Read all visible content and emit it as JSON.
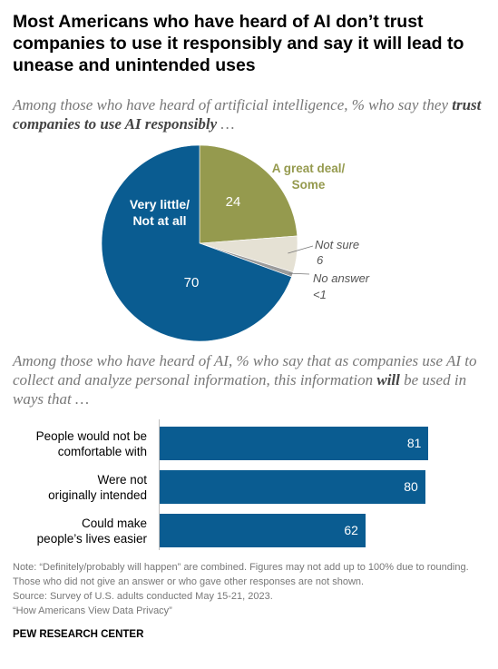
{
  "title": "Most Americans who have heard of AI don’t trust companies to use it responsibly and say it will lead to unease and unintended uses",
  "subtitle1": {
    "pre": "Among those who have heard of artificial intelligence, % who say they ",
    "bold": "trust companies to use AI responsibly",
    "post": " …"
  },
  "subtitle2": {
    "pre": "Among those who have heard of AI, % who say that as companies use AI to collect and analyze personal information, this information ",
    "bold": "will",
    "post": " be used in ways that …"
  },
  "colors": {
    "blue": "#0a5c91",
    "olive": "#959a4e",
    "beige": "#e5e1d4",
    "gray": "#9b9b9b"
  },
  "chart_data": [
    {
      "type": "pie",
      "slices": [
        {
          "label_lines": [
            "A great deal/",
            "Some"
          ],
          "value": 24,
          "value_label": "24",
          "color": "#959a4e"
        },
        {
          "label_lines": [
            "Not sure"
          ],
          "value": 6,
          "value_label": "6",
          "color": "#e5e1d4"
        },
        {
          "label_lines": [
            "No answer"
          ],
          "value": 0.8,
          "value_label": "<1",
          "color": "#9b9b9b"
        },
        {
          "label_lines": [
            "Very little/",
            "Not at all"
          ],
          "value": 70,
          "value_label": "70",
          "color": "#0a5c91"
        }
      ]
    },
    {
      "type": "bar",
      "orientation": "horizontal",
      "categories": [
        [
          "People would not be",
          "comfortable with"
        ],
        [
          "Were not",
          "originally intended"
        ],
        [
          "Could make",
          "people’s lives easier"
        ]
      ],
      "values": [
        81,
        80,
        62
      ],
      "value_labels": [
        "81",
        "80",
        "62"
      ],
      "color": "#0a5c91"
    }
  ],
  "note": "Note: “Definitely/probably will happen” are combined. Figures may not add up to 100% due to rounding. Those who did not give an answer or who gave other responses are not shown.",
  "source": "Source: Survey of U.S. adults conducted May 15-21, 2023.",
  "report": "“How Americans View Data Privacy”",
  "org": "PEW RESEARCH CENTER"
}
